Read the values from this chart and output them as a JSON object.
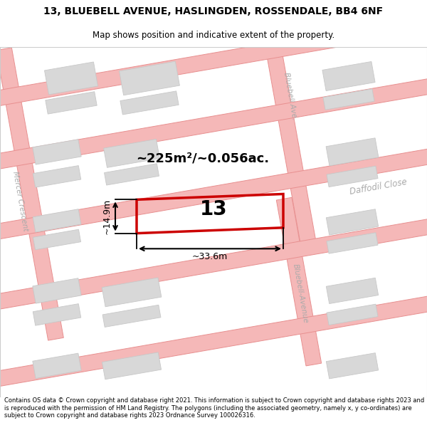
{
  "title_line1": "13, BLUEBELL AVENUE, HASLINGDEN, ROSSENDALE, BB4 6NF",
  "title_line2": "Map shows position and indicative extent of the property.",
  "footer_text": "Contains OS data © Crown copyright and database right 2021. This information is subject to Crown copyright and database rights 2023 and is reproduced with the permission of HM Land Registry. The polygons (including the associated geometry, namely x, y co-ordinates) are subject to Crown copyright and database rights 2023 Ordnance Survey 100026316.",
  "background_color": "#ffffff",
  "map_bg": "#ffffff",
  "building_color": "#d8d8d8",
  "building_ec": "#c8c8c8",
  "road_fill": "#f5b8b8",
  "road_edge": "#e89090",
  "highlight_color": "#cc0000",
  "street_label_color": "#aaaaaa",
  "area_text": "~225m²/~0.056ac.",
  "dim_h_text": "~14.9m",
  "dim_w_text": "~33.6m",
  "label_13": "13"
}
